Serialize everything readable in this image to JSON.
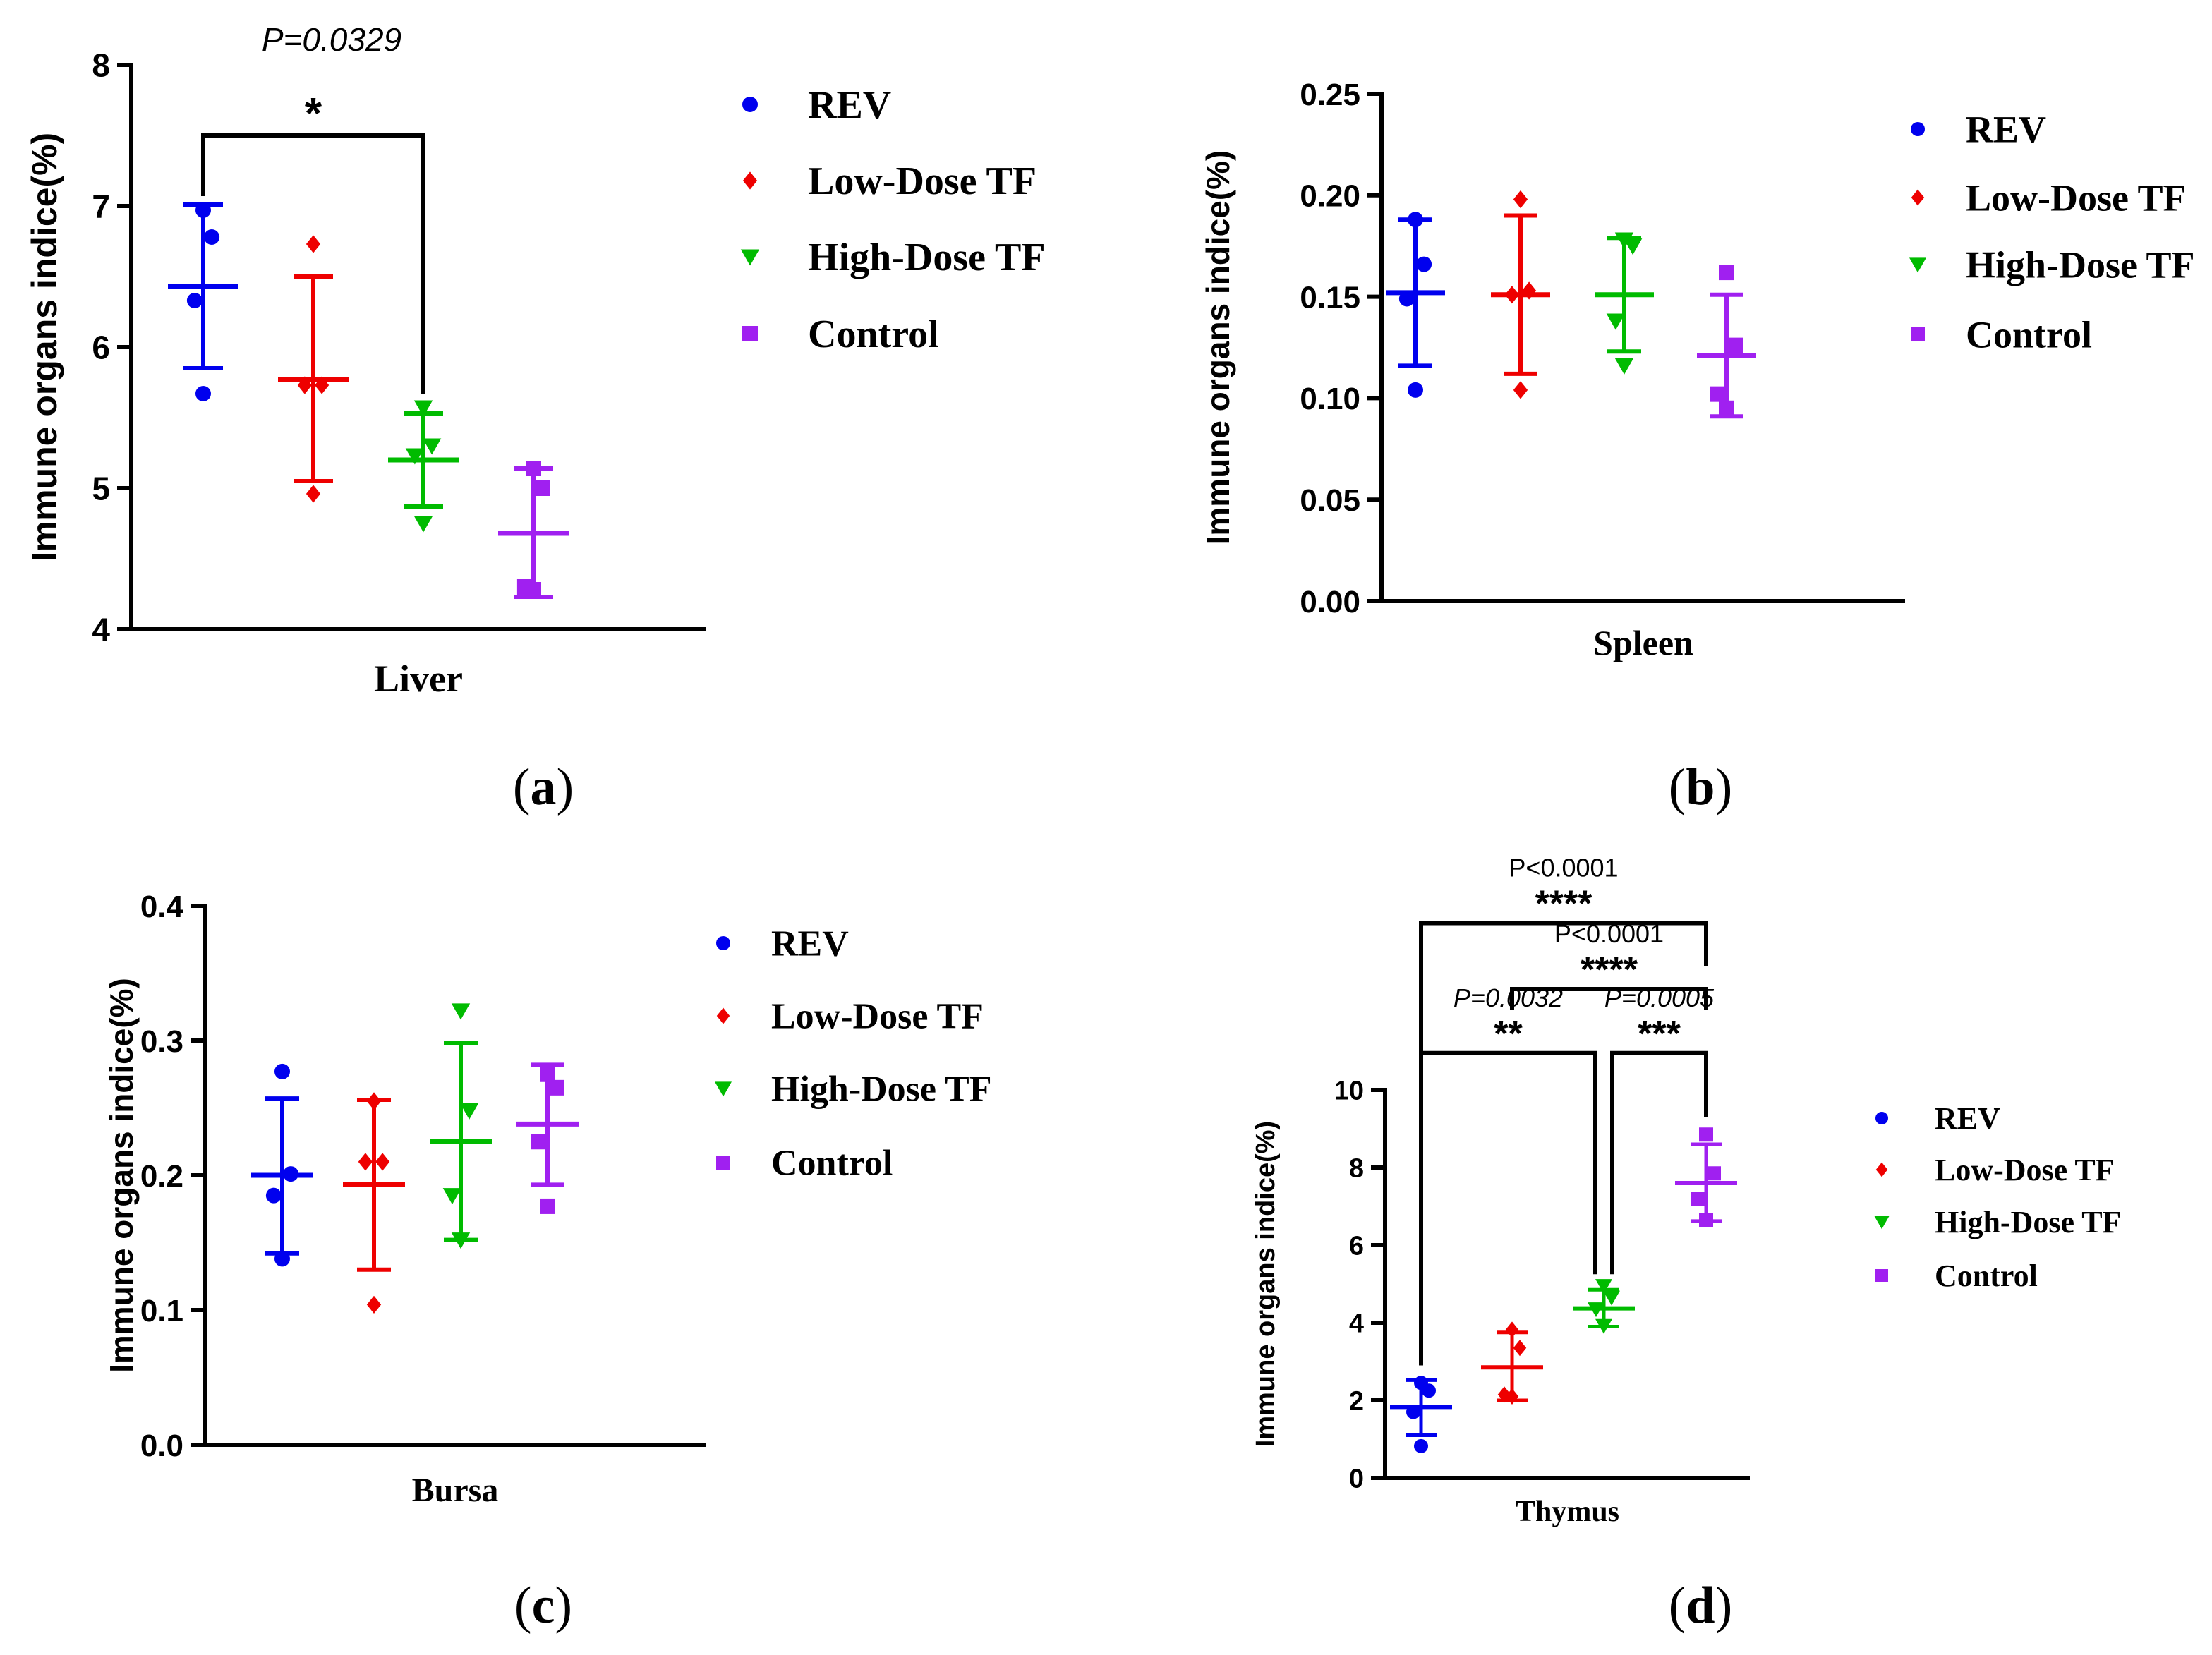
{
  "groups": [
    "REV",
    "Low-Dose TF",
    "High-Dose TF",
    "Control"
  ],
  "colors": {
    "REV": "#0000ee",
    "Low-Dose TF": "#ee0000",
    "High-Dose TF": "#00bb00",
    "Control": "#a020f0"
  },
  "markers": {
    "REV": "circle",
    "Low-Dose TF": "diamond",
    "High-Dose TF": "triangle-down",
    "Control": "square"
  },
  "chart_data": [
    {
      "id": "a",
      "panel_label": "a",
      "type": "scatter",
      "xlabel": "Liver",
      "ylabel": "Immune organs indice(%)",
      "ylim": [
        4,
        8
      ],
      "yticks": [
        "4",
        "5",
        "6",
        "7",
        "8"
      ],
      "series": [
        {
          "name": "REV",
          "mean": 6.43,
          "err_low": 5.85,
          "err_high": 7.01,
          "points": [
            6.97,
            6.78,
            6.33,
            5.67
          ]
        },
        {
          "name": "Low-Dose TF",
          "mean": 5.77,
          "err_low": 5.05,
          "err_high": 6.5,
          "points": [
            6.73,
            5.73,
            5.73,
            4.96
          ]
        },
        {
          "name": "High-Dose TF",
          "mean": 5.2,
          "err_low": 4.87,
          "err_high": 5.53,
          "points": [
            5.57,
            5.3,
            5.23,
            4.75
          ]
        },
        {
          "name": "Control",
          "mean": 4.68,
          "err_low": 4.23,
          "err_high": 5.14,
          "points": [
            5.14,
            5.0,
            4.3,
            4.28
          ]
        }
      ],
      "comparisons": [
        {
          "from": 0,
          "to": 2,
          "y": 7.5,
          "p_label": "P=0.0329",
          "stars": "*"
        }
      ]
    },
    {
      "id": "b",
      "panel_label": "b",
      "type": "scatter",
      "xlabel": "Spleen",
      "ylabel": "Immune organs indice(%)",
      "ylim": [
        0,
        0.25
      ],
      "yticks": [
        "0.00",
        "0.05",
        "0.10",
        "0.15",
        "0.20",
        "0.25"
      ],
      "series": [
        {
          "name": "REV",
          "mean": 0.152,
          "err_low": 0.116,
          "err_high": 0.188,
          "points": [
            0.188,
            0.166,
            0.149,
            0.104
          ]
        },
        {
          "name": "Low-Dose TF",
          "mean": 0.151,
          "err_low": 0.112,
          "err_high": 0.19,
          "points": [
            0.198,
            0.153,
            0.151,
            0.104
          ]
        },
        {
          "name": "High-Dose TF",
          "mean": 0.151,
          "err_low": 0.123,
          "err_high": 0.179,
          "points": [
            0.178,
            0.175,
            0.138,
            0.116
          ]
        },
        {
          "name": "Control",
          "mean": 0.121,
          "err_low": 0.091,
          "err_high": 0.151,
          "points": [
            0.162,
            0.126,
            0.102,
            0.095
          ]
        }
      ],
      "comparisons": []
    },
    {
      "id": "c",
      "panel_label": "c",
      "type": "scatter",
      "xlabel": "Bursa",
      "ylabel": "Immune organs indice(%)",
      "ylim": [
        0,
        0.4
      ],
      "yticks": [
        "0.0",
        "0.1",
        "0.2",
        "0.3",
        "0.4"
      ],
      "series": [
        {
          "name": "REV",
          "mean": 0.2,
          "err_low": 0.142,
          "err_high": 0.257,
          "points": [
            0.277,
            0.201,
            0.185,
            0.138
          ]
        },
        {
          "name": "Low-Dose TF",
          "mean": 0.193,
          "err_low": 0.13,
          "err_high": 0.256,
          "points": [
            0.255,
            0.21,
            0.21,
            0.104
          ]
        },
        {
          "name": "High-Dose TF",
          "mean": 0.225,
          "err_low": 0.152,
          "err_high": 0.298,
          "points": [
            0.322,
            0.248,
            0.185,
            0.152
          ]
        },
        {
          "name": "Control",
          "mean": 0.238,
          "err_low": 0.193,
          "err_high": 0.282,
          "points": [
            0.275,
            0.265,
            0.225,
            0.177
          ]
        }
      ],
      "comparisons": []
    },
    {
      "id": "d",
      "panel_label": "d",
      "type": "scatter",
      "xlabel": "Thymus",
      "ylabel": "Immune organs indice(%)",
      "ylim": [
        0,
        10
      ],
      "yticks": [
        "0",
        "2",
        "4",
        "6",
        "8",
        "10"
      ],
      "series": [
        {
          "name": "REV",
          "mean": 1.83,
          "err_low": 1.1,
          "err_high": 2.52,
          "points": [
            2.45,
            2.25,
            1.7,
            0.82
          ]
        },
        {
          "name": "Low-Dose TF",
          "mean": 2.85,
          "err_low": 2.0,
          "err_high": 3.75,
          "points": [
            3.82,
            3.35,
            2.15,
            2.1
          ]
        },
        {
          "name": "High-Dose TF",
          "mean": 4.37,
          "err_low": 3.9,
          "err_high": 4.85,
          "points": [
            4.95,
            4.65,
            4.35,
            3.92
          ]
        },
        {
          "name": "Control",
          "mean": 7.6,
          "err_low": 6.62,
          "err_high": 8.6,
          "points": [
            8.85,
            7.85,
            7.2,
            6.65
          ]
        }
      ],
      "comparisons": [
        {
          "from": 0,
          "to": 3,
          "y": 14.3,
          "p_label": "P<0.0001",
          "stars": "****",
          "p_italic": false
        },
        {
          "from": 1,
          "to": 3,
          "y": 12.6,
          "p_label": "P<0.0001",
          "stars": "****",
          "p_italic": false
        },
        {
          "from": 0,
          "to": 2,
          "y": 10.95,
          "p_label": "P=0.0032",
          "stars": "**",
          "p_italic": true
        },
        {
          "from": 2,
          "to": 3,
          "y": 10.95,
          "p_label": "P=0.0005",
          "stars": "***",
          "p_italic": true
        }
      ]
    }
  ]
}
